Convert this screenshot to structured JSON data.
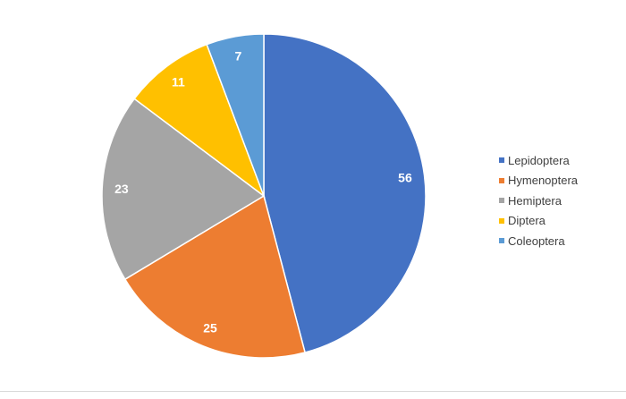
{
  "chart_data": {
    "type": "pie",
    "title": "",
    "categories": [
      "Lepidoptera",
      "Hymenoptera",
      "Hemiptera",
      "Diptera",
      "Coleoptera"
    ],
    "values": [
      56,
      25,
      23,
      11,
      7
    ],
    "colors": [
      "#4472c4",
      "#ed7d31",
      "#a5a5a5",
      "#ffc000",
      "#5b9bd5"
    ],
    "start_angle_deg": 0,
    "direction": "clockwise",
    "slice_border_color": "#ffffff",
    "data_label_color": "#ffffff",
    "legend_position": "right"
  },
  "legend": {
    "items": [
      {
        "label": "Lepidoptera",
        "color": "#4472c4"
      },
      {
        "label": "Hymenoptera",
        "color": "#ed7d31"
      },
      {
        "label": "Hemiptera",
        "color": "#a5a5a5"
      },
      {
        "label": "Diptera",
        "color": "#ffc000"
      },
      {
        "label": "Coleoptera",
        "color": "#5b9bd5"
      }
    ]
  }
}
